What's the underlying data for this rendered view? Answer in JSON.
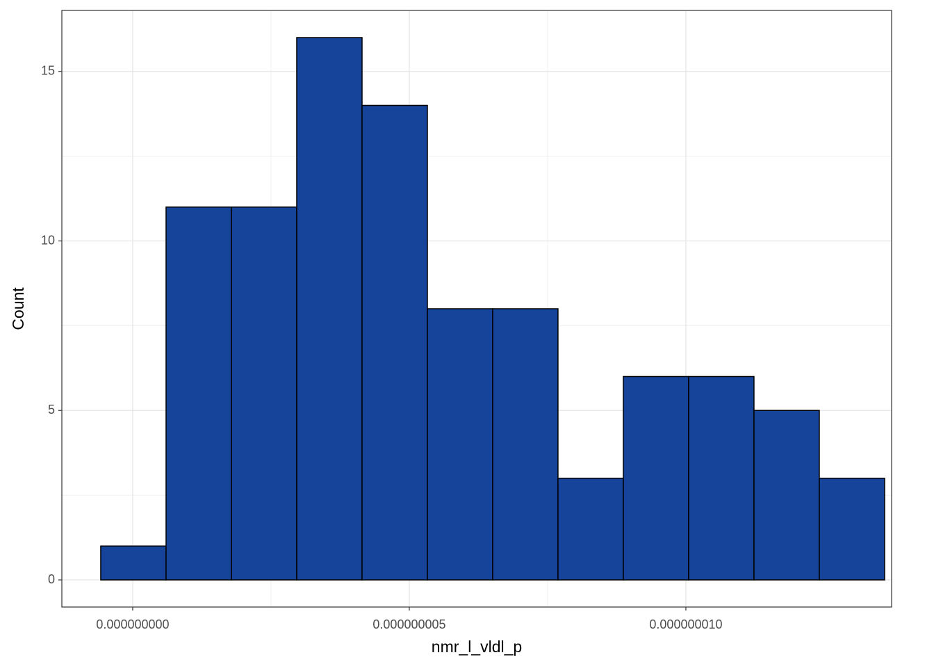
{
  "chart_data": {
    "type": "histogram",
    "x_label": "nmr_l_vldl_p",
    "y_label": "Count",
    "bins": [
      -5.78e-10,
      6.03e-10,
      1.784e-09,
      2.965e-09,
      4.146e-09,
      5.327e-09,
      6.508e-09,
      7.688e-09,
      8.869e-09,
      1.005e-08,
      1.1231e-08,
      1.2412e-08,
      1.3593e-08
    ],
    "values": [
      1,
      11,
      11,
      16,
      14,
      8,
      8,
      3,
      6,
      6,
      5,
      3
    ],
    "color": "#17449b",
    "xlim": [
      -1.281e-09,
      1.3719e-08
    ],
    "xticks": [
      {
        "value": 0,
        "label": "0.000000000"
      },
      {
        "value": 5e-09,
        "label": "0.000000005"
      },
      {
        "value": 1e-08,
        "label": "0.000000010"
      }
    ],
    "ylim": [
      -0.8,
      16.8
    ],
    "yticks": [
      0,
      5,
      10,
      15
    ],
    "grid": true
  }
}
